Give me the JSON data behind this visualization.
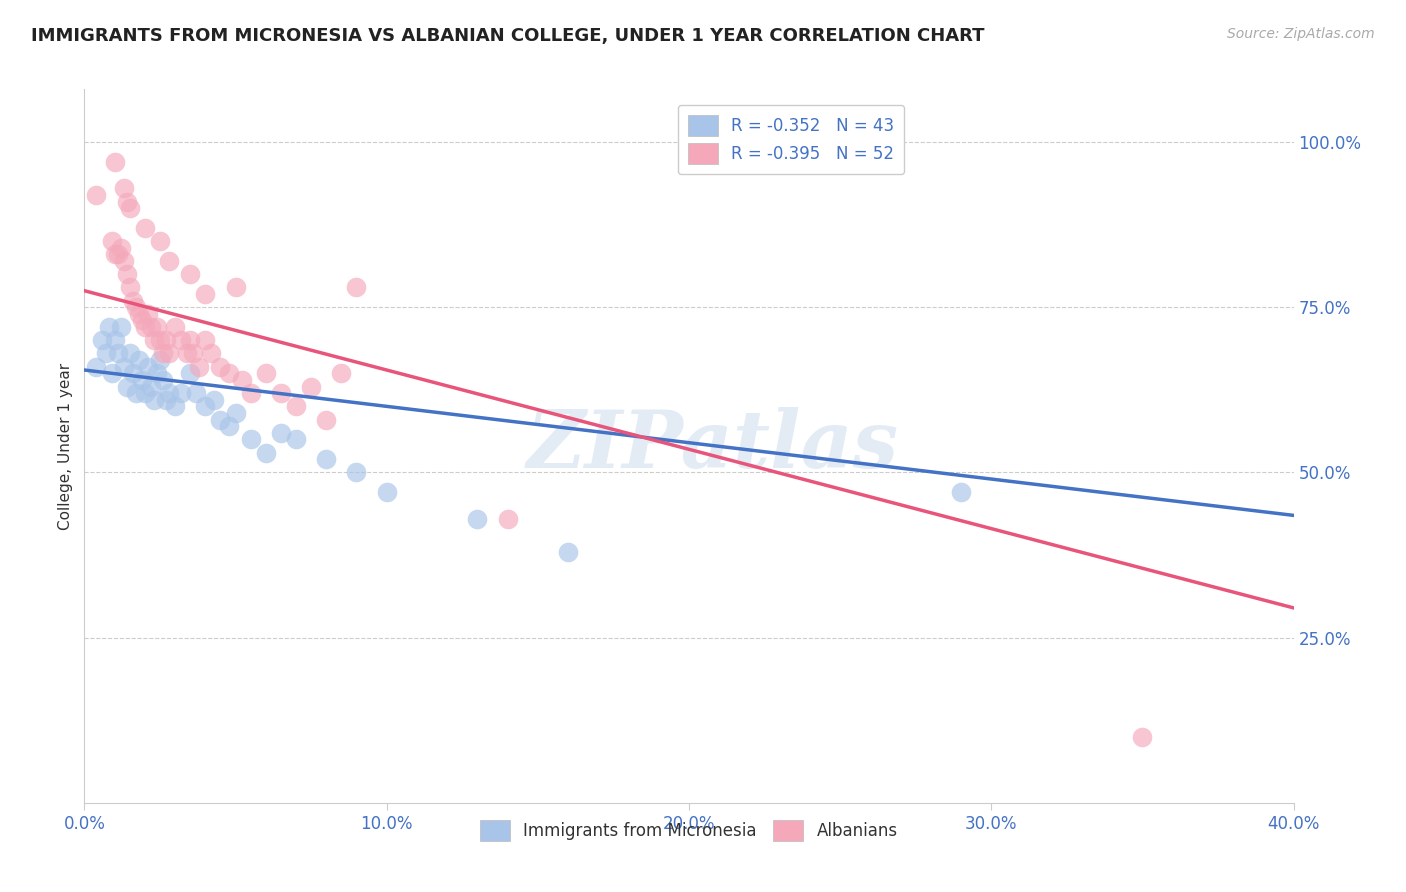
{
  "title": "IMMIGRANTS FROM MICRONESIA VS ALBANIAN COLLEGE, UNDER 1 YEAR CORRELATION CHART",
  "source": "Source: ZipAtlas.com",
  "xlabel_ticks": [
    "0.0%",
    "10.0%",
    "20.0%",
    "30.0%",
    "40.0%"
  ],
  "xlabel_tick_vals": [
    0.0,
    0.1,
    0.2,
    0.3,
    0.4
  ],
  "ylabel": "College, Under 1 year",
  "ylabel_ticks": [
    "25.0%",
    "50.0%",
    "75.0%",
    "100.0%"
  ],
  "ylabel_tick_vals": [
    0.25,
    0.5,
    0.75,
    1.0
  ],
  "xlim": [
    0.0,
    0.4
  ],
  "ylim": [
    0.0,
    1.08
  ],
  "legend1_label": "R = -0.352   N = 43",
  "legend2_label": "R = -0.395   N = 52",
  "watermark": "ZIPatlas",
  "blue_color": "#A8C4E8",
  "pink_color": "#F4A8BA",
  "blue_line_color": "#4472C4",
  "pink_line_color": "#E8557A",
  "blue_regression": [
    0.0,
    0.655,
    0.4,
    0.435
  ],
  "pink_regression": [
    0.0,
    0.775,
    0.4,
    0.295
  ],
  "blue_scatter": [
    [
      0.004,
      0.66
    ],
    [
      0.006,
      0.7
    ],
    [
      0.007,
      0.68
    ],
    [
      0.008,
      0.72
    ],
    [
      0.009,
      0.65
    ],
    [
      0.01,
      0.7
    ],
    [
      0.011,
      0.68
    ],
    [
      0.012,
      0.72
    ],
    [
      0.013,
      0.66
    ],
    [
      0.014,
      0.63
    ],
    [
      0.015,
      0.68
    ],
    [
      0.016,
      0.65
    ],
    [
      0.017,
      0.62
    ],
    [
      0.018,
      0.67
    ],
    [
      0.019,
      0.64
    ],
    [
      0.02,
      0.62
    ],
    [
      0.021,
      0.66
    ],
    [
      0.022,
      0.63
    ],
    [
      0.023,
      0.61
    ],
    [
      0.024,
      0.65
    ],
    [
      0.025,
      0.67
    ],
    [
      0.026,
      0.64
    ],
    [
      0.027,
      0.61
    ],
    [
      0.028,
      0.62
    ],
    [
      0.03,
      0.6
    ],
    [
      0.032,
      0.62
    ],
    [
      0.035,
      0.65
    ],
    [
      0.037,
      0.62
    ],
    [
      0.04,
      0.6
    ],
    [
      0.043,
      0.61
    ],
    [
      0.045,
      0.58
    ],
    [
      0.048,
      0.57
    ],
    [
      0.05,
      0.59
    ],
    [
      0.055,
      0.55
    ],
    [
      0.06,
      0.53
    ],
    [
      0.065,
      0.56
    ],
    [
      0.07,
      0.55
    ],
    [
      0.08,
      0.52
    ],
    [
      0.09,
      0.5
    ],
    [
      0.1,
      0.47
    ],
    [
      0.13,
      0.43
    ],
    [
      0.16,
      0.38
    ],
    [
      0.29,
      0.47
    ]
  ],
  "pink_scatter": [
    [
      0.004,
      0.92
    ],
    [
      0.009,
      0.85
    ],
    [
      0.01,
      0.83
    ],
    [
      0.011,
      0.83
    ],
    [
      0.012,
      0.84
    ],
    [
      0.013,
      0.82
    ],
    [
      0.014,
      0.8
    ],
    [
      0.015,
      0.78
    ],
    [
      0.016,
      0.76
    ],
    [
      0.017,
      0.75
    ],
    [
      0.018,
      0.74
    ],
    [
      0.019,
      0.73
    ],
    [
      0.02,
      0.72
    ],
    [
      0.021,
      0.74
    ],
    [
      0.022,
      0.72
    ],
    [
      0.023,
      0.7
    ],
    [
      0.024,
      0.72
    ],
    [
      0.025,
      0.7
    ],
    [
      0.026,
      0.68
    ],
    [
      0.027,
      0.7
    ],
    [
      0.028,
      0.68
    ],
    [
      0.03,
      0.72
    ],
    [
      0.032,
      0.7
    ],
    [
      0.034,
      0.68
    ],
    [
      0.035,
      0.7
    ],
    [
      0.036,
      0.68
    ],
    [
      0.038,
      0.66
    ],
    [
      0.04,
      0.7
    ],
    [
      0.042,
      0.68
    ],
    [
      0.045,
      0.66
    ],
    [
      0.048,
      0.65
    ],
    [
      0.05,
      0.78
    ],
    [
      0.052,
      0.64
    ],
    [
      0.055,
      0.62
    ],
    [
      0.06,
      0.65
    ],
    [
      0.065,
      0.62
    ],
    [
      0.07,
      0.6
    ],
    [
      0.075,
      0.63
    ],
    [
      0.08,
      0.58
    ],
    [
      0.085,
      0.65
    ],
    [
      0.09,
      0.78
    ],
    [
      0.01,
      0.97
    ],
    [
      0.013,
      0.93
    ],
    [
      0.014,
      0.91
    ],
    [
      0.015,
      0.9
    ],
    [
      0.02,
      0.87
    ],
    [
      0.025,
      0.85
    ],
    [
      0.028,
      0.82
    ],
    [
      0.035,
      0.8
    ],
    [
      0.04,
      0.77
    ],
    [
      0.35,
      0.1
    ],
    [
      0.14,
      0.43
    ]
  ]
}
